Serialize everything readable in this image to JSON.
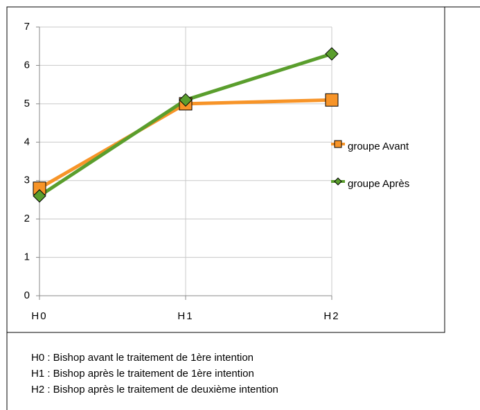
{
  "chart_data": {
    "type": "line",
    "categories": [
      "H0",
      "H1",
      "H2"
    ],
    "series": [
      {
        "name": "groupe Avant",
        "color": "#f79428",
        "marker": "square",
        "values": [
          2.8,
          5.0,
          5.1
        ]
      },
      {
        "name": "groupe Après",
        "color": "#5a9e2d",
        "marker": "diamond",
        "values": [
          2.6,
          5.1,
          6.3
        ]
      }
    ],
    "ylim": [
      0,
      7
    ],
    "yticks": [
      0,
      1,
      2,
      3,
      4,
      5,
      6,
      7
    ],
    "grid": true,
    "legend": "right"
  },
  "notes": [
    "H0 : Bishop avant le traitement de 1ère intention",
    "H1 : Bishop après le traitement de 1ère intention",
    "H2 : Bishop après le traitement de deuxième intention"
  ]
}
